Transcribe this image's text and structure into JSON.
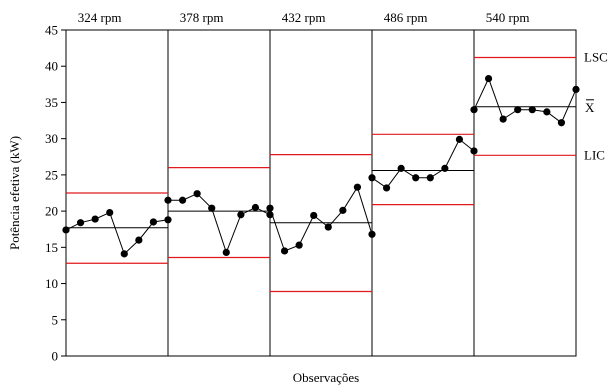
{
  "chart_data": {
    "type": "line",
    "chart_kind": "control chart (individual values) by stage",
    "xlabel": "Observações",
    "ylabel": "Potência efetiva (kW)",
    "ylim": [
      0,
      45
    ],
    "y_ticks": [
      "0",
      "5",
      "10",
      "15",
      "20",
      "25",
      "30",
      "35",
      "40",
      "45"
    ],
    "grid": false,
    "colors": {
      "data_line": "#000000",
      "center_line": "#000000",
      "limit_lines": "#e0191e"
    },
    "line_labels": {
      "ucl": "LSC",
      "mean": "X",
      "lcl": "LIC"
    },
    "panels": [
      {
        "title": "324 rpm",
        "values": [
          17.4,
          18.4,
          18.9,
          19.8,
          14.1,
          16.0,
          18.5,
          18.8
        ],
        "mean": 17.7,
        "ucl": 22.5,
        "lcl": 12.8
      },
      {
        "title": "378 rpm",
        "values": [
          21.5,
          21.5,
          22.4,
          20.4,
          14.3,
          19.5,
          20.5,
          19.5
        ],
        "mean": 20.0,
        "ucl": 26.0,
        "lcl": 13.6
      },
      {
        "title": "432 rpm",
        "values": [
          20.4,
          14.5,
          15.3,
          19.4,
          17.8,
          20.1,
          23.3,
          16.8
        ],
        "mean": 18.4,
        "ucl": 27.8,
        "lcl": 8.9
      },
      {
        "title": "486 rpm",
        "values": [
          24.6,
          23.2,
          25.9,
          24.6,
          24.6,
          25.9,
          29.9,
          28.3
        ],
        "mean": 25.6,
        "ucl": 30.6,
        "lcl": 20.9
      },
      {
        "title": "540 rpm",
        "values": [
          34.0,
          38.3,
          32.7,
          34.0,
          34.0,
          33.7,
          32.2,
          36.8
        ],
        "mean": 34.4,
        "ucl": 41.2,
        "lcl": 27.7
      }
    ]
  }
}
